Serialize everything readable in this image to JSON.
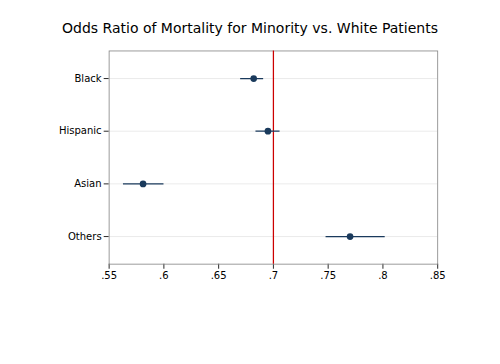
{
  "chart_data": {
    "type": "forest",
    "title": "Odds Ratio of Mortality for Minority vs. White Patients",
    "categories": [
      "Black",
      "Hispanic",
      "Asian",
      "Others"
    ],
    "values": [
      0.682,
      0.695,
      0.581,
      0.77
    ],
    "ci_low": [
      0.67,
      0.684,
      0.563,
      0.748
    ],
    "ci_high": [
      0.691,
      0.706,
      0.6,
      0.802
    ],
    "reference_line": {
      "value": 0.7,
      "color": "#cc0000"
    },
    "xlim": [
      0.55,
      0.85
    ],
    "xticks": [
      {
        "value": 0.55,
        "label": ".55"
      },
      {
        "value": 0.6,
        "label": ".6"
      },
      {
        "value": 0.65,
        "label": ".65"
      },
      {
        "value": 0.7,
        "label": ".7"
      },
      {
        "value": 0.75,
        "label": ".75"
      },
      {
        "value": 0.8,
        "label": ".8"
      },
      {
        "value": 0.85,
        "label": ".85"
      }
    ],
    "color": "#1a3a5c",
    "grid": true
  }
}
